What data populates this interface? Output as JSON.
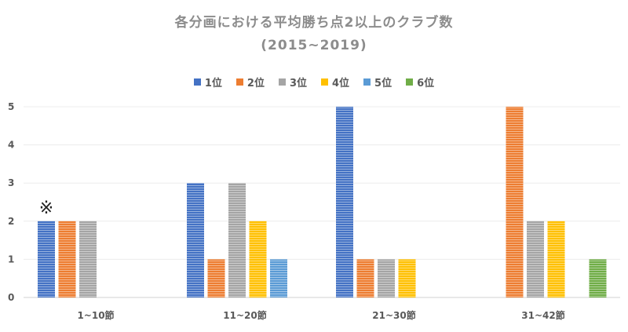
{
  "chart_data": {
    "type": "bar",
    "title": "各分画における平均勝ち点2以上のクラブ数",
    "subtitle": "(2015~2019)",
    "xlabel": "",
    "ylabel": "",
    "ylim": [
      0,
      5
    ],
    "yticks": [
      0,
      1,
      2,
      3,
      4,
      5
    ],
    "grid": true,
    "legend_position": "top",
    "categories": [
      "1~10節",
      "11~20節",
      "21~30節",
      "31~42節"
    ],
    "series": [
      {
        "name": "1位",
        "color": "#4472C4",
        "values": [
          2,
          3,
          5,
          0
        ]
      },
      {
        "name": "2位",
        "color": "#ED7D31",
        "values": [
          2,
          1,
          1,
          5
        ]
      },
      {
        "name": "3位",
        "color": "#A5A5A5",
        "values": [
          2,
          3,
          1,
          2
        ]
      },
      {
        "name": "4位",
        "color": "#FFC000",
        "values": [
          0,
          2,
          1,
          2
        ]
      },
      {
        "name": "5位",
        "color": "#5B9BD5",
        "values": [
          0,
          1,
          0,
          0
        ]
      },
      {
        "name": "6位",
        "color": "#70AD47",
        "values": [
          0,
          0,
          0,
          1
        ]
      }
    ],
    "annotations": [
      {
        "text": "※",
        "category": "1~10節",
        "series": "1位"
      }
    ]
  }
}
